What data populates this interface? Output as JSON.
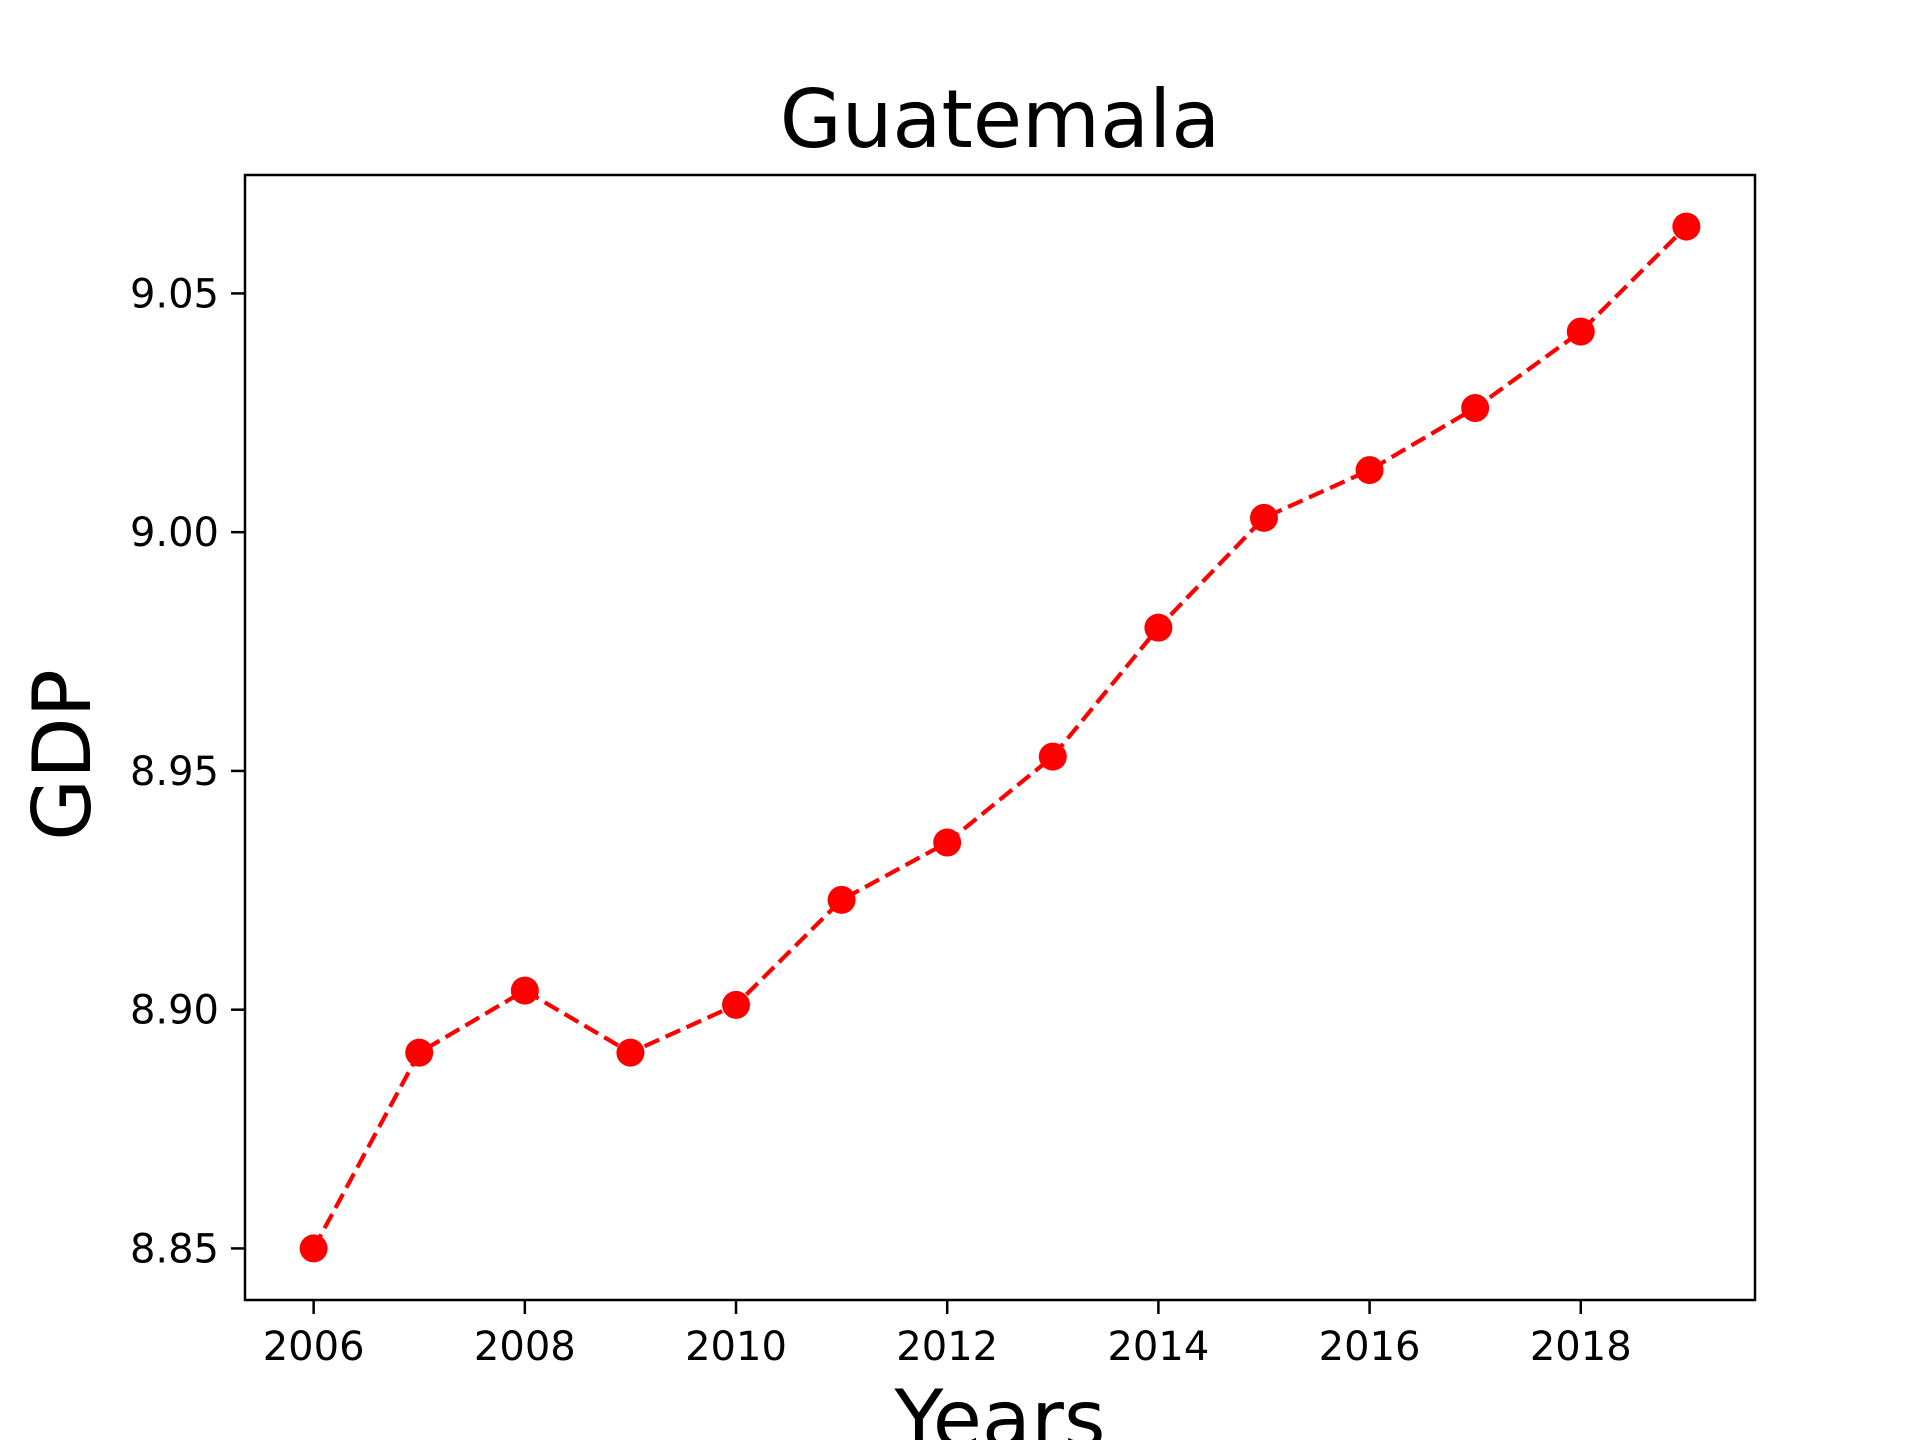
{
  "chart_data": {
    "type": "line",
    "title": "Guatemala",
    "xlabel": "Years",
    "ylabel": "GDP",
    "x": [
      2006,
      2007,
      2008,
      2009,
      2010,
      2011,
      2012,
      2013,
      2014,
      2015,
      2016,
      2017,
      2018,
      2019
    ],
    "series": [
      {
        "values": [
          8.85,
          8.891,
          8.904,
          8.891,
          8.901,
          8.923,
          8.935,
          8.953,
          8.98,
          9.003,
          9.013,
          9.026,
          9.042,
          9.064
        ],
        "color": "#ff0000",
        "line_style": "dashed",
        "marker": "circle"
      }
    ],
    "xlim": [
      2005.35,
      2019.65
    ],
    "ylim": [
      8.8392,
      9.0748
    ],
    "xticks": [
      2006,
      2008,
      2010,
      2012,
      2014,
      2016,
      2018
    ],
    "xtick_labels": [
      "2006",
      "2008",
      "2010",
      "2012",
      "2014",
      "2016",
      "2018"
    ],
    "yticks": [
      8.85,
      8.9,
      8.95,
      9.0,
      9.05
    ],
    "ytick_labels": [
      "8.85",
      "8.90",
      "8.95",
      "9.00",
      "9.05"
    ],
    "grid": false,
    "legend": "none"
  }
}
